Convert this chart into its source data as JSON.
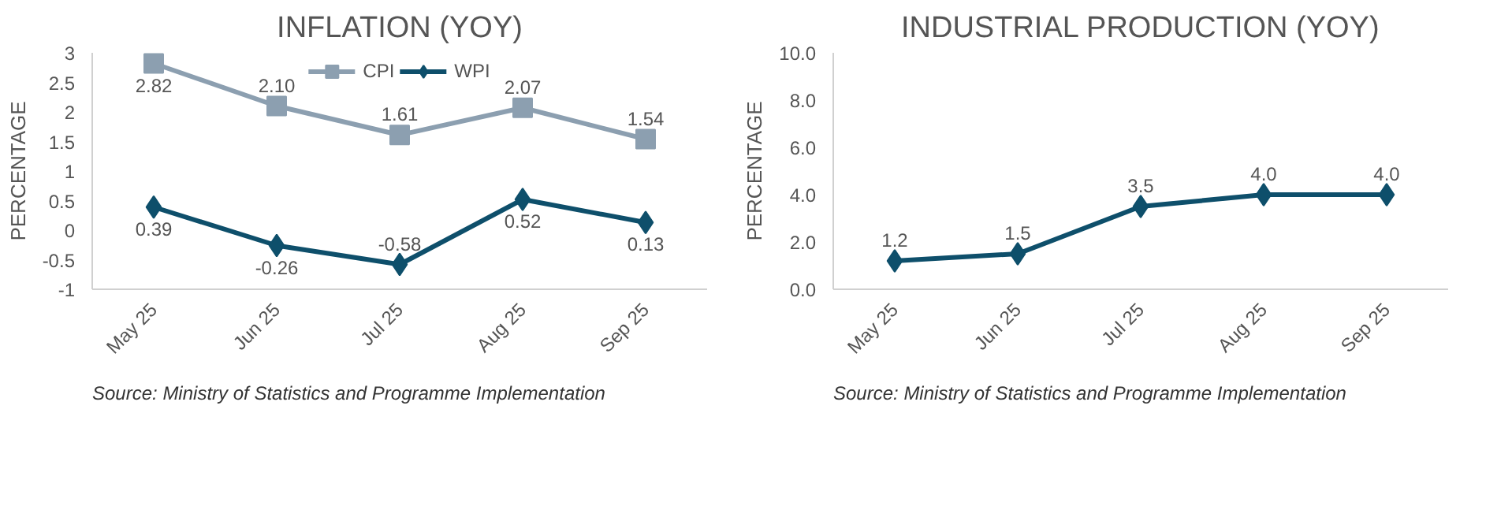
{
  "chart_data": [
    {
      "type": "line",
      "title": "INFLATION (YOY)",
      "ylabel": "PERCENTAGE",
      "categories": [
        "May 25",
        "Jun 25",
        "Jul 25",
        "Aug 25",
        "Sep 25"
      ],
      "series": [
        {
          "name": "CPI",
          "color": "#8c9fb0",
          "marker": "square",
          "values": [
            2.82,
            2.1,
            1.61,
            2.07,
            1.54
          ],
          "value_labels": [
            "2.82",
            "2.10",
            "1.61",
            "2.07",
            "1.54"
          ]
        },
        {
          "name": "WPI",
          "color": "#0e4f6b",
          "marker": "diamond",
          "values": [
            0.39,
            -0.26,
            -0.58,
            0.52,
            0.13
          ],
          "value_labels": [
            "0.39",
            "-0.26",
            "-0.58",
            "0.52",
            "0.13"
          ]
        }
      ],
      "ylim": [
        -1,
        3
      ],
      "yticks": [
        -1,
        -0.5,
        0,
        0.5,
        1,
        1.5,
        2,
        2.5,
        3
      ],
      "grid": false,
      "legend": "top",
      "annotations": [
        "Source: Ministry of Statistics and Programme Implementation"
      ]
    },
    {
      "type": "line",
      "title": "INDUSTRIAL PRODUCTION (YOY)",
      "ylabel": "PERCENTAGE",
      "categories": [
        "May 25",
        "Jun 25",
        "Jul 25",
        "Aug 25",
        "Sep 25"
      ],
      "series": [
        {
          "color": "#0e4f6b",
          "marker": "diamond",
          "values": [
            1.2,
            1.5,
            3.5,
            4.0,
            4.0
          ],
          "value_labels": [
            "1.2",
            "1.5",
            "3.5",
            "4.0",
            "4.0"
          ]
        }
      ],
      "ylim": [
        0,
        10
      ],
      "yticks": [
        {
          "value": 0,
          "label": "0.0"
        },
        {
          "value": 2,
          "label": "2.0"
        },
        {
          "value": 4,
          "label": "4.0"
        },
        {
          "value": 6,
          "label": "6.0"
        },
        {
          "value": 8,
          "label": "8.0"
        },
        {
          "value": 10,
          "label": "10.0"
        }
      ],
      "grid": false,
      "legend": false,
      "annotations": [
        "Source: Ministry of Statistics and Programme Implementation"
      ]
    }
  ]
}
